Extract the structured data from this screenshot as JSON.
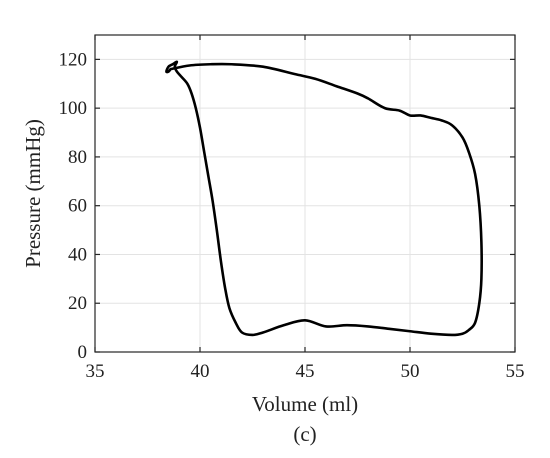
{
  "chart_data": {
    "type": "line",
    "title": "",
    "xlabel": "Volume (ml)",
    "ylabel": "Pressure (mmHg)",
    "panel_label": "(c)",
    "xlim": [
      35,
      55
    ],
    "ylim": [
      0,
      130
    ],
    "xticks": [
      35,
      40,
      45,
      50,
      55
    ],
    "yticks": [
      0,
      20,
      40,
      60,
      80,
      100,
      120
    ],
    "grid": true,
    "line_color": "#000000",
    "series": [
      {
        "x": [
          38.6,
          39.5,
          40.5,
          41.5,
          43.0,
          44.5,
          45.5,
          46.5,
          47.5,
          48.0,
          48.8,
          49.5,
          50.0,
          50.5,
          51.0,
          51.5,
          52.0,
          52.5,
          52.8,
          53.1,
          53.3,
          53.4,
          53.4,
          53.3,
          53.1,
          52.8,
          52.5,
          52.0,
          51.0,
          50.0,
          49.0,
          48.0,
          47.0,
          46.0,
          45.0,
          44.0,
          43.0,
          42.5,
          42.0,
          41.7,
          41.4,
          41.2,
          41.0,
          40.8,
          40.6,
          40.4,
          40.2,
          40.0,
          39.8,
          39.6,
          39.4,
          39.1,
          38.9,
          38.8,
          38.9,
          38.7,
          38.5,
          38.4,
          38.5,
          38.6
        ],
        "y": [
          116,
          117.5,
          118,
          118,
          117,
          114,
          112,
          109,
          106,
          104,
          100,
          99,
          97,
          97,
          96,
          95,
          93,
          88,
          82,
          73,
          60,
          45,
          30,
          20,
          12,
          9,
          7.5,
          7,
          7.5,
          8.5,
          9.5,
          10.5,
          11,
          10.5,
          13,
          11,
          8,
          7,
          8,
          12,
          18,
          26,
          37,
          50,
          62,
          72,
          82,
          92,
          100,
          106,
          110,
          113,
          115,
          117,
          119,
          118,
          117,
          115,
          115,
          116
        ]
      }
    ]
  }
}
